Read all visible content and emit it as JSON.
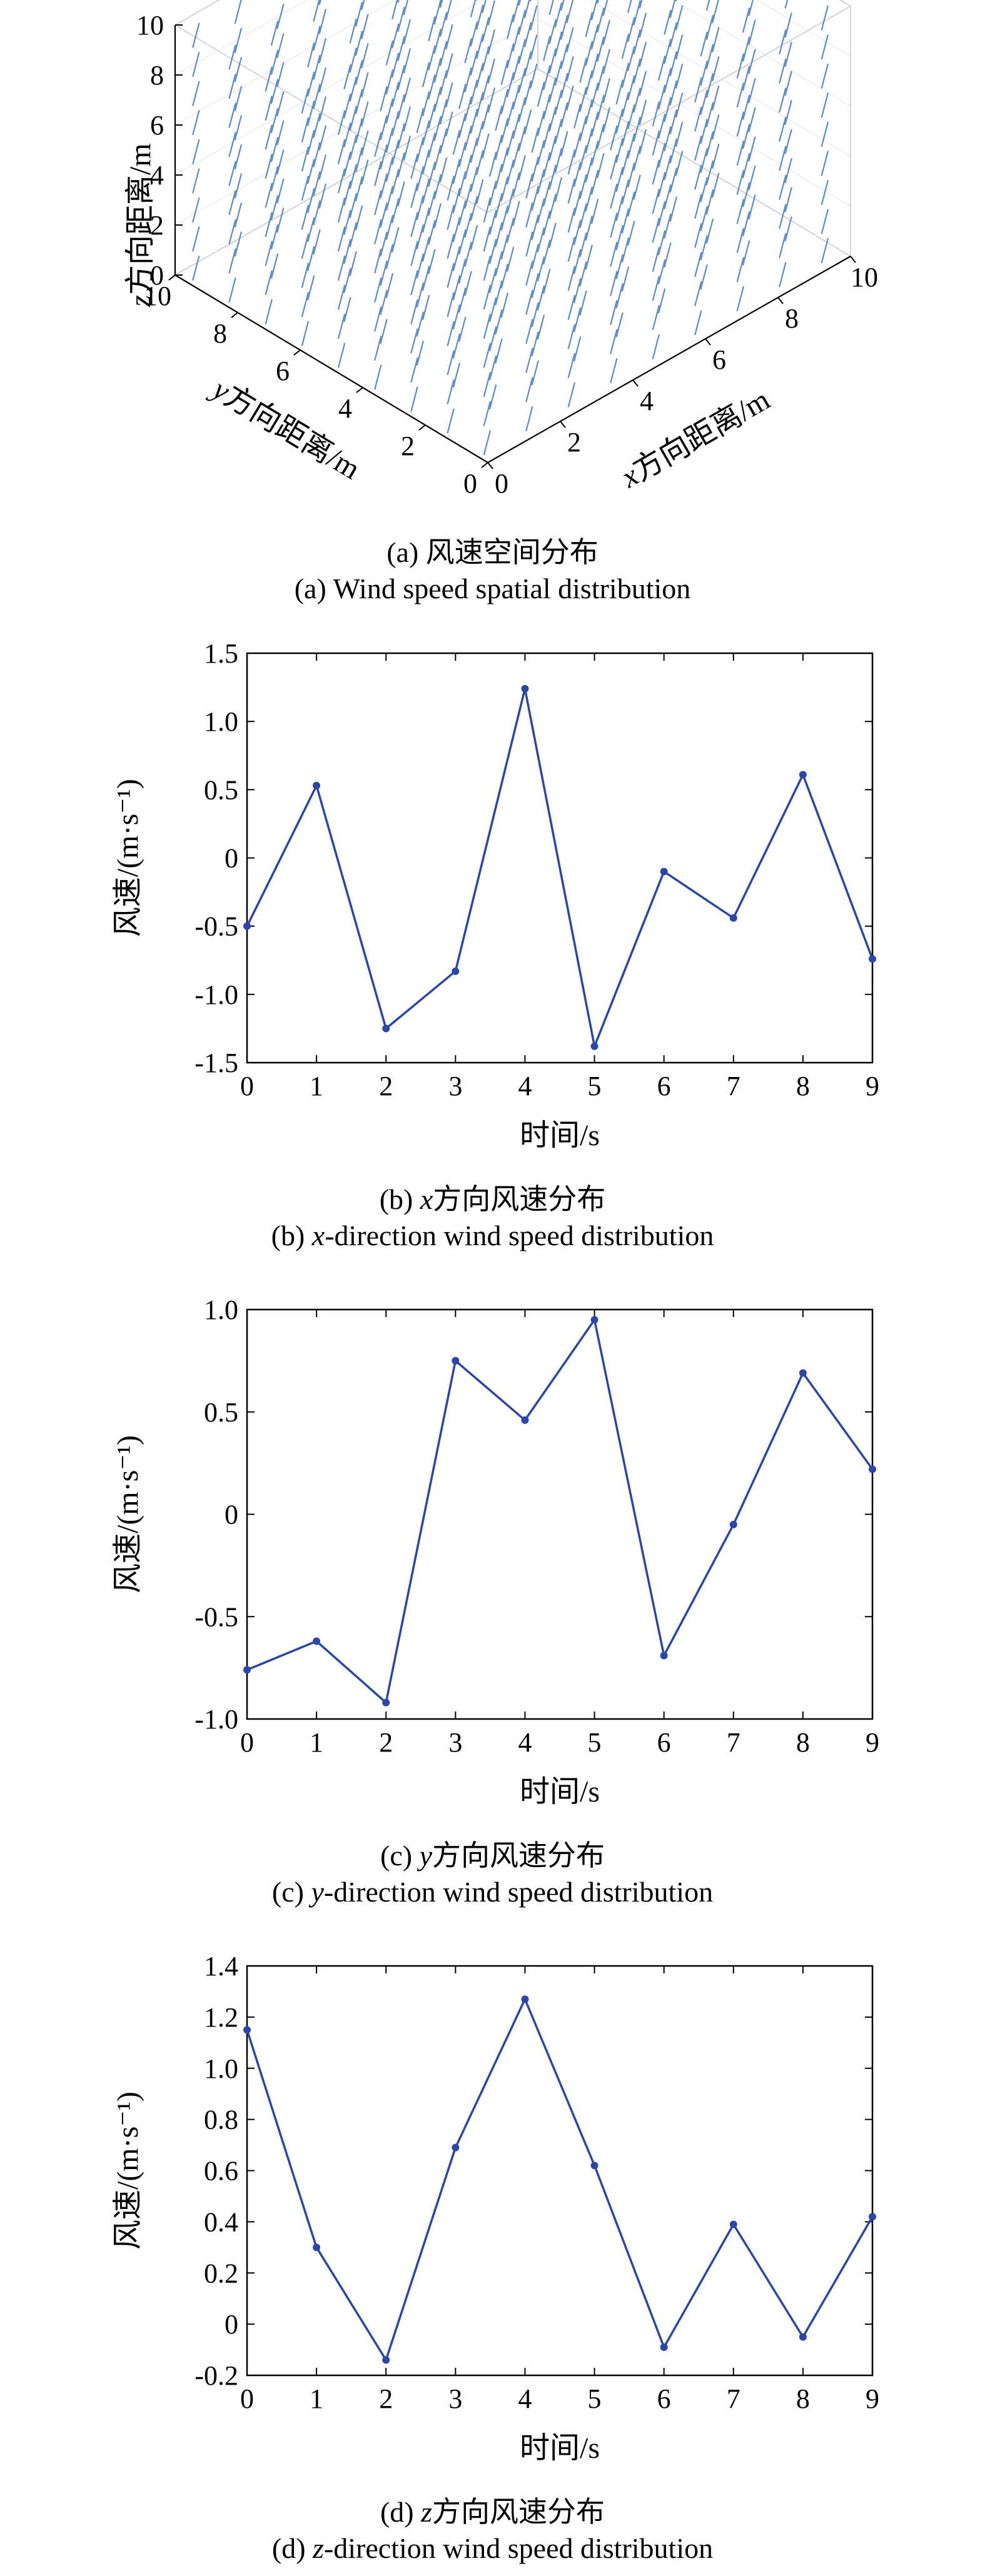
{
  "chart_data": [
    {
      "id": "a",
      "type": "quiver3d",
      "xlabel_var": "x",
      "xlabel_rest": "方向距离/m",
      "ylabel_var": "y",
      "ylabel_rest": "方向距离/m",
      "zlabel_var": "z",
      "zlabel_rest": "方向距离/m",
      "xlim": [
        0,
        10
      ],
      "ylim": [
        0,
        10
      ],
      "zlim": [
        0,
        10
      ],
      "xticks": [
        "0",
        "2",
        "4",
        "6",
        "8",
        "10"
      ],
      "yticks": [
        "0",
        "2",
        "4",
        "6",
        "8",
        "10"
      ],
      "zticks": [
        "0",
        "2",
        "4",
        "6",
        "8",
        "10"
      ],
      "arrow_color": "#4a7fc1",
      "caption_cn_prefix": "(a) ",
      "caption_cn_var": "",
      "caption_cn_rest": "风速空间分布",
      "caption_en_prefix": "(a) ",
      "caption_en_var": "",
      "caption_en_rest": "Wind speed spatial distribution"
    },
    {
      "id": "b",
      "type": "line",
      "x": [
        0,
        1,
        2,
        3,
        4,
        5,
        6,
        7,
        8,
        9
      ],
      "values": [
        -0.5,
        0.53,
        -1.25,
        -0.83,
        1.24,
        -1.38,
        -0.1,
        -0.44,
        0.61,
        -0.74
      ],
      "ylim": [
        -1.5,
        1.5
      ],
      "xlim": [
        0,
        9
      ],
      "yticks": [
        "-1.5",
        "-1.0",
        "-0.5",
        "0",
        "0.5",
        "1.0",
        "1.5"
      ],
      "xticks": [
        "0",
        "1",
        "2",
        "3",
        "4",
        "5",
        "6",
        "7",
        "8",
        "9"
      ],
      "xlabel": "时间/s",
      "ylabel": "风速/(m·s⁻¹)",
      "line_color": "#2946a8",
      "grid": false,
      "caption_cn_prefix": "(b) ",
      "caption_cn_var": "x",
      "caption_cn_rest": "方向风速分布",
      "caption_en_prefix": "(b) ",
      "caption_en_var": "x",
      "caption_en_rest": "-direction wind speed distribution"
    },
    {
      "id": "c",
      "type": "line",
      "x": [
        0,
        1,
        2,
        3,
        4,
        5,
        6,
        7,
        8,
        9
      ],
      "values": [
        -0.76,
        -0.62,
        -0.92,
        0.75,
        0.46,
        0.95,
        -0.69,
        -0.05,
        0.69,
        0.22
      ],
      "ylim": [
        -1.0,
        1.0
      ],
      "xlim": [
        0,
        9
      ],
      "yticks": [
        "-1.0",
        "-0.5",
        "0",
        "0.5",
        "1.0"
      ],
      "xticks": [
        "0",
        "1",
        "2",
        "3",
        "4",
        "5",
        "6",
        "7",
        "8",
        "9"
      ],
      "xlabel": "时间/s",
      "ylabel": "风速/(m·s⁻¹)",
      "line_color": "#2946a8",
      "grid": false,
      "caption_cn_prefix": "(c) ",
      "caption_cn_var": "y",
      "caption_cn_rest": "方向风速分布",
      "caption_en_prefix": "(c) ",
      "caption_en_var": "y",
      "caption_en_rest": "-direction wind speed distribution"
    },
    {
      "id": "d",
      "type": "line",
      "x": [
        0,
        1,
        2,
        3,
        4,
        5,
        6,
        7,
        8,
        9
      ],
      "values": [
        1.15,
        0.3,
        -0.14,
        0.69,
        1.27,
        0.62,
        -0.09,
        0.39,
        -0.05,
        0.42
      ],
      "ylim": [
        -0.2,
        1.4
      ],
      "xlim": [
        0,
        9
      ],
      "yticks": [
        "-0.2",
        "0",
        "0.2",
        "0.4",
        "0.6",
        "0.8",
        "1.0",
        "1.2",
        "1.4"
      ],
      "xticks": [
        "0",
        "1",
        "2",
        "3",
        "4",
        "5",
        "6",
        "7",
        "8",
        "9"
      ],
      "xlabel": "时间/s",
      "ylabel": "风速/(m·s⁻¹)",
      "line_color": "#2946a8",
      "grid": false,
      "caption_cn_prefix": "(d) ",
      "caption_cn_var": "z",
      "caption_cn_rest": "方向风速分布",
      "caption_en_prefix": "(d) ",
      "caption_en_var": "z",
      "caption_en_rest": "-direction wind speed distribution"
    }
  ]
}
